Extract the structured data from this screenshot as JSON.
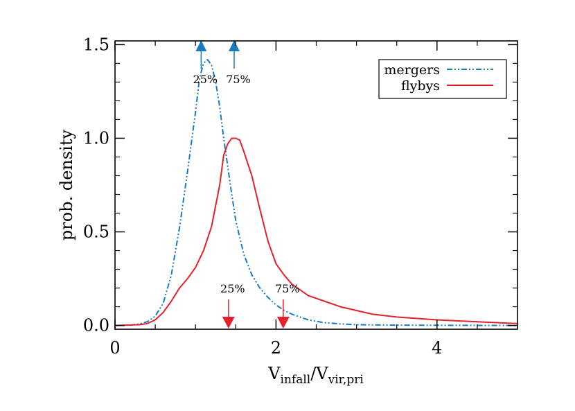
{
  "chart_data": {
    "type": "line",
    "xlabel": {
      "main": "V",
      "sub1": "infall",
      "slash": "/V",
      "sub2": "vir,pri"
    },
    "ylabel": "prob. density",
    "xlim": [
      0,
      5
    ],
    "ylim": [
      -0.02,
      1.52
    ],
    "x_ticks": [
      {
        "value": 0,
        "label": "0"
      },
      {
        "value": 2,
        "label": "2"
      },
      {
        "value": 4,
        "label": "4"
      }
    ],
    "x_minor_ticks": [
      0.5,
      1,
      1.5,
      2.5,
      3,
      3.5,
      4.5
    ],
    "y_ticks": [
      {
        "value": 0,
        "label": "0.0"
      },
      {
        "value": 0.5,
        "label": "0.5"
      },
      {
        "value": 1.0,
        "label": "1.0"
      },
      {
        "value": 1.5,
        "label": "1.5"
      }
    ],
    "y_minor_ticks": [
      0.1,
      0.2,
      0.3,
      0.4,
      0.6,
      0.7,
      0.8,
      0.9,
      1.1,
      1.2,
      1.3,
      1.4
    ],
    "legend": {
      "position": "top-right"
    },
    "series": [
      {
        "name": "mergers",
        "color": "#1a7abf",
        "style": "dash-dot-dot",
        "x": [
          0,
          0.2,
          0.3,
          0.4,
          0.5,
          0.6,
          0.7,
          0.8,
          0.9,
          1.0,
          1.05,
          1.1,
          1.15,
          1.2,
          1.25,
          1.3,
          1.35,
          1.4,
          1.45,
          1.5,
          1.6,
          1.7,
          1.8,
          1.9,
          2.0,
          2.1,
          2.2,
          2.4,
          2.6,
          2.8,
          3.0,
          3.5,
          4.0,
          5.0
        ],
        "values": [
          0,
          0.002,
          0.008,
          0.02,
          0.05,
          0.12,
          0.27,
          0.52,
          0.82,
          1.14,
          1.32,
          1.4,
          1.42,
          1.39,
          1.3,
          1.17,
          1.0,
          0.85,
          0.7,
          0.56,
          0.38,
          0.27,
          0.2,
          0.15,
          0.11,
          0.08,
          0.06,
          0.03,
          0.015,
          0.008,
          0.004,
          0.002,
          0.001,
          0
        ]
      },
      {
        "name": "flybys",
        "color": "#e3212b",
        "style": "solid",
        "x": [
          0,
          0.3,
          0.4,
          0.5,
          0.6,
          0.7,
          0.8,
          0.9,
          1.0,
          1.1,
          1.2,
          1.3,
          1.35,
          1.4,
          1.45,
          1.5,
          1.55,
          1.6,
          1.7,
          1.8,
          1.9,
          2.0,
          2.1,
          2.2,
          2.3,
          2.4,
          2.6,
          2.8,
          3.0,
          3.2,
          3.5,
          4.0,
          4.5,
          5.0
        ],
        "values": [
          0,
          0.004,
          0.01,
          0.03,
          0.07,
          0.13,
          0.2,
          0.25,
          0.31,
          0.4,
          0.53,
          0.75,
          0.91,
          0.97,
          1.0,
          1.0,
          0.99,
          0.93,
          0.8,
          0.62,
          0.45,
          0.33,
          0.27,
          0.22,
          0.19,
          0.16,
          0.13,
          0.1,
          0.08,
          0.06,
          0.045,
          0.03,
          0.02,
          0.01
        ]
      }
    ],
    "markers": [
      {
        "series": "mergers",
        "label": "25%",
        "x": 1.07,
        "direction": "up",
        "color": "#1a7abf"
      },
      {
        "series": "mergers",
        "label": "75%",
        "x": 1.48,
        "direction": "up",
        "color": "#1a7abf"
      },
      {
        "series": "flybys",
        "label": "25%",
        "x": 1.41,
        "direction": "down",
        "color": "#e3212b"
      },
      {
        "series": "flybys",
        "label": "75%",
        "x": 2.09,
        "direction": "down",
        "color": "#e3212b"
      }
    ]
  }
}
